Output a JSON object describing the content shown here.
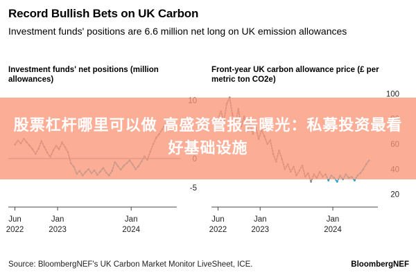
{
  "header": {
    "title": "Record Bullish Bets on UK Carbon",
    "subtitle": "Investment funds' positions are 6.6 million net long on UK emission allowances"
  },
  "overlay": {
    "text": "股票杠杆哪里可以做 高盛资管报告曝光：私募投资最看好基础设施",
    "color": "#FA9678"
  },
  "footer": {
    "source": "Source: BloombergNEF's UK Carbon Market Monitor LiveSheet, ICE.",
    "brand": "BloombergNEF"
  },
  "colors": {
    "above_threshold": "#8a8a8a",
    "below_threshold": "#2aa3c9",
    "zero_line": "#7a7a7a"
  },
  "chart_data": [
    {
      "type": "line",
      "title": "Investment funds' net positions (million allowances)",
      "ylim": [
        -7,
        12
      ],
      "yticks": [
        "10",
        "0",
        "-5"
      ],
      "ytick_values": [
        10,
        0,
        -5
      ],
      "xticks": [
        {
          "label": "Jun\n2022",
          "x": 2022.42
        },
        {
          "label": "Jan\n2023",
          "x": 2023.0
        },
        {
          "label": "Jan\n2024",
          "x": 2024.0
        }
      ],
      "xlim": [
        2022.33,
        2024.62
      ],
      "threshold": 0,
      "x": [
        2022.42,
        2022.46,
        2022.5,
        2022.54,
        2022.58,
        2022.62,
        2022.66,
        2022.7,
        2022.74,
        2022.78,
        2022.82,
        2022.86,
        2022.9,
        2022.94,
        2022.98,
        2023.02,
        2023.06,
        2023.1,
        2023.14,
        2023.18,
        2023.22,
        2023.26,
        2023.3,
        2023.34,
        2023.38,
        2023.42,
        2023.46,
        2023.5,
        2023.54,
        2023.58,
        2023.62,
        2023.66,
        2023.7,
        2023.74,
        2023.78,
        2023.82,
        2023.86,
        2023.9,
        2023.94,
        2023.98,
        2024.02,
        2024.06,
        2024.1,
        2024.14,
        2024.18,
        2024.22,
        2024.26,
        2024.3,
        2024.34,
        2024.38,
        2024.42,
        2024.46,
        2024.5
      ],
      "y": [
        2.4,
        3.1,
        2.6,
        3.4,
        2.8,
        2.2,
        1.6,
        0.8,
        1.7,
        3.0,
        2.0,
        1.0,
        0.3,
        1.4,
        2.2,
        1.6,
        2.8,
        2.0,
        1.1,
        -0.8,
        -1.4,
        -2.6,
        -2.1,
        -2.9,
        -2.3,
        -1.8,
        -2.5,
        -2.0,
        -2.8,
        -2.2,
        -1.6,
        -2.4,
        -2.9,
        -2.1,
        -0.6,
        -1.3,
        -1.9,
        -1.2,
        -0.8,
        -0.3,
        -1.0,
        -1.8,
        -1.3,
        -0.5,
        0.4,
        -0.2,
        1.2,
        2.5,
        3.6,
        4.2,
        5.0,
        5.8,
        6.6
      ]
    },
    {
      "type": "line",
      "title": "Front-year UK carbon allowance price (£ per metric ton CO2e)",
      "ylim": [
        16,
        104
      ],
      "yticks": [
        "100",
        "80",
        "60",
        "40",
        "20"
      ],
      "ytick_values": [
        100,
        80,
        60,
        40,
        20
      ],
      "xticks": [
        {
          "label": "Jun\n2022",
          "x": 2022.42
        },
        {
          "label": "Jan\n2023",
          "x": 2023.0
        },
        {
          "label": "Jan\n2024",
          "x": 2024.0
        }
      ],
      "xlim": [
        2022.33,
        2024.62
      ],
      "x": [
        2022.42,
        2022.46,
        2022.5,
        2022.54,
        2022.58,
        2022.62,
        2022.66,
        2022.7,
        2022.74,
        2022.78,
        2022.82,
        2022.86,
        2022.9,
        2022.94,
        2022.98,
        2023.02,
        2023.06,
        2023.1,
        2023.14,
        2023.18,
        2023.22,
        2023.26,
        2023.3,
        2023.34,
        2023.38,
        2023.42,
        2023.46,
        2023.5,
        2023.54,
        2023.58,
        2023.62,
        2023.66,
        2023.7,
        2023.74,
        2023.78,
        2023.82,
        2023.86,
        2023.9,
        2023.94,
        2023.98,
        2024.02,
        2024.06,
        2024.1,
        2024.14,
        2024.18,
        2024.22,
        2024.26,
        2024.3,
        2024.34,
        2024.38,
        2024.42,
        2024.46,
        2024.5
      ],
      "y": [
        80,
        86,
        78,
        92,
        97,
        83,
        76,
        88,
        74,
        82,
        70,
        77,
        68,
        73,
        64,
        71,
        66,
        60,
        63,
        52,
        46,
        55,
        48,
        40,
        44,
        38,
        42,
        35,
        39,
        43,
        34,
        37,
        30,
        36,
        33,
        38,
        34,
        36,
        31,
        35,
        33,
        30,
        35,
        32,
        36,
        33,
        34,
        31,
        35,
        37,
        40,
        44,
        47
      ]
    }
  ]
}
